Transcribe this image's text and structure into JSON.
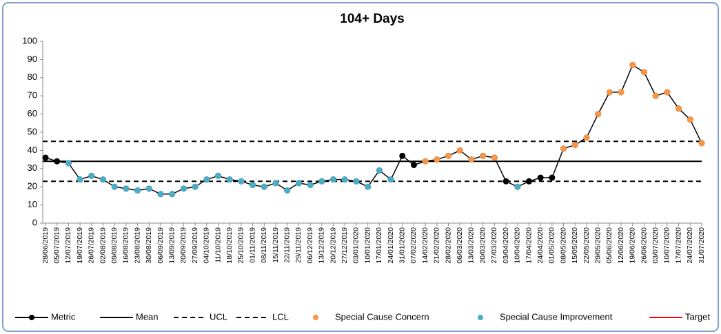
{
  "chart_data": {
    "type": "spc",
    "title": "104+ Days",
    "x": [
      "28/06/2019",
      "05/07/2019",
      "12/07/2019",
      "19/07/2019",
      "26/07/2019",
      "02/08/2019",
      "09/08/2019",
      "16/08/2019",
      "23/08/2019",
      "30/08/2019",
      "06/09/2019",
      "13/09/2019",
      "20/09/2019",
      "27/09/2019",
      "04/10/2019",
      "11/10/2019",
      "18/10/2019",
      "25/10/2019",
      "01/11/2019",
      "08/11/2019",
      "15/11/2019",
      "22/11/2019",
      "29/11/2019",
      "06/12/2019",
      "13/12/2019",
      "20/12/2019",
      "27/12/2019",
      "03/01/2020",
      "10/01/2020",
      "17/01/2020",
      "24/01/2020",
      "31/01/2020",
      "07/02/2020",
      "14/02/2020",
      "21/02/2020",
      "28/02/2020",
      "06/03/2020",
      "13/03/2020",
      "20/03/2020",
      "27/03/2020",
      "03/04/2020",
      "10/04/2020",
      "17/04/2020",
      "24/04/2020",
      "01/05/2020",
      "08/05/2020",
      "15/05/2020",
      "22/05/2020",
      "29/05/2020",
      "05/06/2020",
      "12/06/2020",
      "19/06/2020",
      "26/06/2020",
      "03/07/2020",
      "10/07/2020",
      "17/07/2020",
      "24/07/2020",
      "31/07/2020"
    ],
    "series": [
      {
        "name": "Metric",
        "color": "#000000",
        "style": "line-marker",
        "values": [
          36,
          34,
          33,
          24,
          26,
          24,
          20,
          19,
          18,
          19,
          16,
          16,
          19,
          20,
          24,
          26,
          24,
          23,
          21,
          20,
          22,
          18,
          22,
          21,
          23,
          24,
          24,
          23,
          20,
          29,
          24,
          37,
          32,
          34,
          35,
          37,
          40,
          35,
          37,
          36,
          23,
          20,
          23,
          25,
          25,
          41,
          43,
          47,
          60,
          72,
          72,
          87,
          83,
          70,
          72,
          63,
          57,
          44
        ]
      },
      {
        "name": "Mean",
        "color": "#000000",
        "style": "solid",
        "value": 34
      },
      {
        "name": "UCL",
        "color": "#000000",
        "style": "dashed",
        "value": 45
      },
      {
        "name": "LCL",
        "color": "#000000",
        "style": "dashed",
        "value": 23
      },
      {
        "name": "Special Cause Concern",
        "color": "#f79646",
        "style": "marker",
        "values": [
          null,
          null,
          null,
          null,
          null,
          null,
          null,
          null,
          null,
          null,
          null,
          null,
          null,
          null,
          null,
          null,
          null,
          null,
          null,
          null,
          null,
          null,
          null,
          null,
          null,
          null,
          null,
          null,
          null,
          null,
          null,
          null,
          null,
          34,
          35,
          37,
          40,
          35,
          37,
          36,
          null,
          null,
          null,
          null,
          null,
          41,
          43,
          47,
          60,
          72,
          72,
          87,
          83,
          70,
          72,
          63,
          57,
          44
        ]
      },
      {
        "name": "Special Cause Improvement",
        "color": "#4bacc6",
        "style": "marker",
        "values": [
          null,
          null,
          33,
          24,
          26,
          24,
          20,
          19,
          18,
          19,
          16,
          16,
          19,
          20,
          24,
          26,
          24,
          23,
          21,
          20,
          22,
          18,
          22,
          21,
          23,
          24,
          24,
          23,
          20,
          29,
          24,
          null,
          null,
          null,
          null,
          null,
          null,
          null,
          null,
          null,
          null,
          20,
          null,
          null,
          null,
          null,
          null,
          null,
          null,
          null,
          null,
          null,
          null,
          null,
          null,
          null,
          null,
          null
        ]
      },
      {
        "name": "Target",
        "color": "#ff0000",
        "style": "solid"
      }
    ],
    "ylim": [
      0,
      100
    ],
    "yticks": [
      0,
      10,
      20,
      30,
      40,
      50,
      60,
      70,
      80,
      90,
      100
    ]
  }
}
